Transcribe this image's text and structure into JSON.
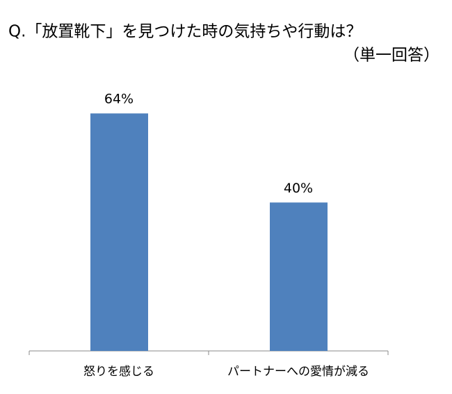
{
  "chart_data": {
    "type": "bar",
    "title": "Q.「放置靴下」を見つけた時の気持ちや行動は？",
    "subtitle": "（単一回答）",
    "categories": [
      "怒りを感じる",
      "パートナーへの愛情が減る"
    ],
    "values": [
      64,
      40
    ],
    "value_labels": [
      "64%",
      "40%"
    ],
    "color": "#4f81bd"
  }
}
